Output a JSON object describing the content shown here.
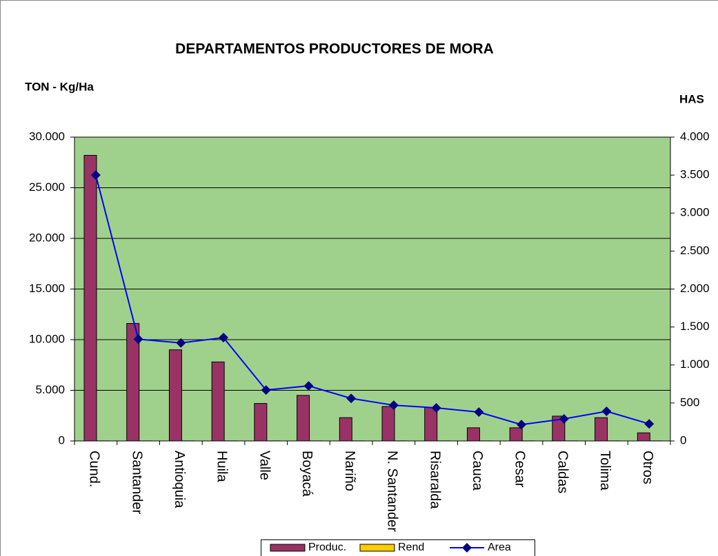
{
  "chart_data": {
    "type": "bar_line",
    "title": "DEPARTAMENTOS PRODUCTORES DE MORA",
    "y_label": "TON - Kg/Ha",
    "y2_label": "HAS",
    "categories": [
      "Cund.",
      "Santander",
      "Antioquia",
      "Huila",
      "Valle",
      "Boyacá",
      "Nariño",
      "N. Santander",
      "Risaralda",
      "Cauca",
      "Cesar",
      "Caldas",
      "Tolima",
      "Otros"
    ],
    "series": [
      {
        "name": "Produc.",
        "kind": "bar",
        "color": "#993366",
        "values": [
          28200,
          11600,
          9000,
          7800,
          3700,
          4500,
          2300,
          3400,
          3300,
          1300,
          1300,
          2450,
          2300,
          800
        ]
      },
      {
        "name": "Rend",
        "kind": "bar",
        "color": "#ffcc00",
        "values": [
          8,
          8,
          8,
          8,
          8,
          8,
          8,
          8,
          8,
          8,
          8,
          8,
          8,
          8
        ]
      },
      {
        "name": "Area",
        "kind": "line",
        "axis": "y2",
        "color": "#0000ff",
        "marker_color": "#000080",
        "values": [
          3500,
          1340,
          1290,
          1360,
          670,
          725,
          560,
          470,
          435,
          380,
          215,
          290,
          390,
          225
        ]
      }
    ],
    "ylim": [
      0,
      30000
    ],
    "yticks": [
      0,
      {
        "value": 5000,
        "label": "5.000"
      },
      {
        "value": 10000,
        "label": "10.000"
      },
      {
        "value": 15000,
        "label": "15.000"
      },
      {
        "value": 20000,
        "label": "20.000"
      },
      {
        "value": 25000,
        "label": "25.000"
      },
      {
        "value": 30000,
        "label": "30.000"
      }
    ],
    "y2lim": [
      0,
      4000
    ],
    "y2ticks": [
      0,
      500,
      {
        "value": 1000,
        "label": "1.000"
      },
      {
        "value": 1500,
        "label": "1.500"
      },
      {
        "value": 2000,
        "label": "2.000"
      },
      {
        "value": 2500,
        "label": "2.500"
      },
      {
        "value": 3000,
        "label": "3.000"
      },
      {
        "value": 3500,
        "label": "3.500"
      },
      {
        "value": 4000,
        "label": "4.000"
      }
    ],
    "grid": true,
    "plot_background": "#a0d18c",
    "legend": "bottom"
  }
}
